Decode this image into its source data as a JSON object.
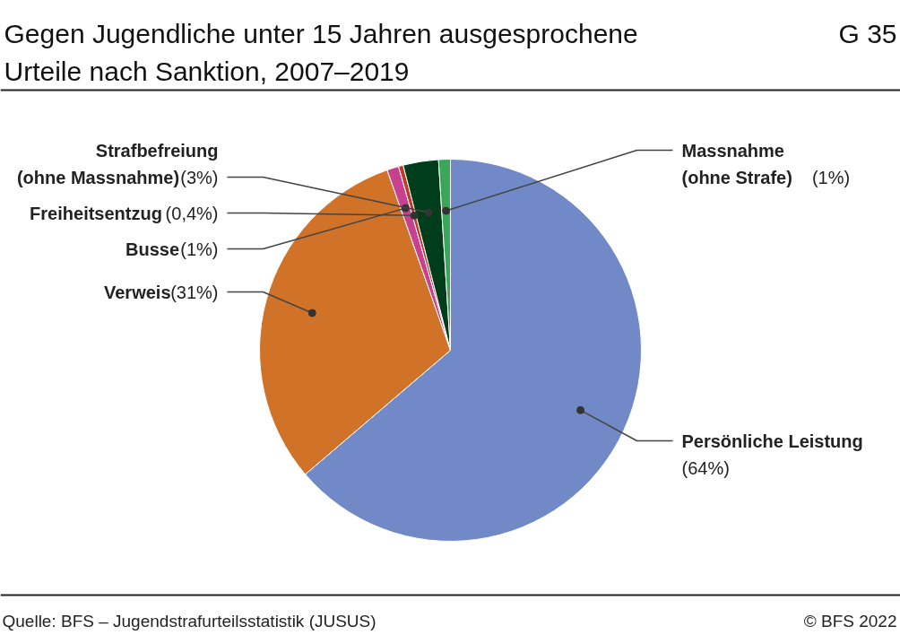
{
  "chart_data": {
    "type": "pie",
    "title": "Gegen Jugendliche unter 15 Jahren ausgesprochene Urteile nach Sanktion, 2007–2019",
    "categories": [
      "Persönliche Leistung",
      "Verweis",
      "Busse",
      "Freiheitsentzug",
      "Strafbefreiung (ohne Massnahme)",
      "Massnahme (ohne Strafe)"
    ],
    "values": [
      64,
      31,
      1,
      0.4,
      3,
      1
    ],
    "value_labels": [
      "(64%)",
      "(31%)",
      "(1%)",
      "(0,4%)",
      "(3%)",
      "(1%)"
    ],
    "colors": [
      "#7289c8",
      "#d07328",
      "#c8418f",
      "#c0392b",
      "#003d1a",
      "#3aa65a"
    ],
    "annotations": [
      "G 35",
      "Quelle: BFS – Jugendstrafurteilsstatistik (JUSUS)",
      "© BFS 2022"
    ]
  }
}
